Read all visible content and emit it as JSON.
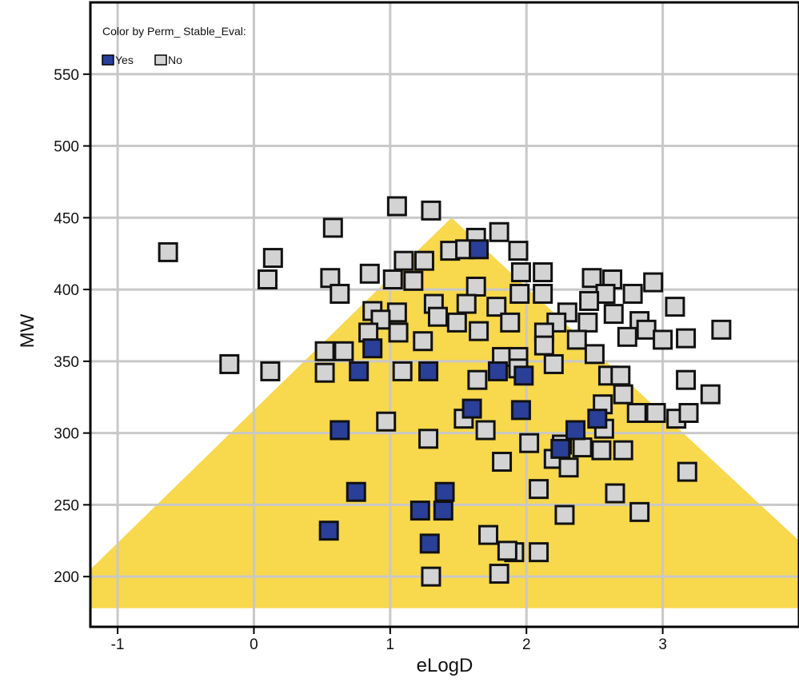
{
  "chart_data": {
    "type": "scatter",
    "xlabel": "eLogD",
    "ylabel": "MW",
    "xlim": [
      -1.2,
      4.0
    ],
    "ylim": [
      165,
      600
    ],
    "x_ticks": [
      -1,
      0,
      1,
      2,
      3
    ],
    "y_ticks": [
      200,
      250,
      300,
      350,
      400,
      450,
      500,
      550
    ],
    "grid": true,
    "legend": {
      "title": "Color by Perm_ Stable_Eval:",
      "position": "top-left",
      "entries": [
        {
          "label": "Yes",
          "color": "#2a3f98"
        },
        {
          "label": "No",
          "color": "#d3d3d3"
        }
      ]
    },
    "region": {
      "color": "#f8d84c",
      "polygon": [
        [
          1.45,
          450
        ],
        [
          -1.2,
          205
        ],
        [
          -1.2,
          178
        ],
        [
          4.0,
          178
        ],
        [
          4.0,
          225
        ]
      ]
    },
    "series": [
      {
        "name": "Yes",
        "color": "#2a3f98",
        "points": [
          [
            1.65,
            428
          ],
          [
            0.87,
            359
          ],
          [
            0.77,
            343
          ],
          [
            1.28,
            343
          ],
          [
            1.79,
            343
          ],
          [
            1.98,
            340
          ],
          [
            1.6,
            317
          ],
          [
            1.96,
            316
          ],
          [
            0.63,
            302
          ],
          [
            2.36,
            302
          ],
          [
            2.52,
            310
          ],
          [
            2.25,
            289
          ],
          [
            0.75,
            259
          ],
          [
            1.4,
            259
          ],
          [
            1.22,
            246
          ],
          [
            1.39,
            246
          ],
          [
            0.55,
            232
          ],
          [
            1.29,
            223
          ]
        ]
      },
      {
        "name": "No",
        "color": "#d3d3d3",
        "points": [
          [
            1.05,
            458
          ],
          [
            1.3,
            455
          ],
          [
            0.58,
            443
          ],
          [
            1.8,
            440
          ],
          [
            1.63,
            436
          ],
          [
            -0.63,
            426
          ],
          [
            1.44,
            427
          ],
          [
            1.55,
            428
          ],
          [
            1.94,
            427
          ],
          [
            0.14,
            422
          ],
          [
            1.1,
            420
          ],
          [
            1.25,
            420
          ],
          [
            1.96,
            412
          ],
          [
            2.12,
            412
          ],
          [
            0.85,
            411
          ],
          [
            1.02,
            407
          ],
          [
            1.17,
            406
          ],
          [
            0.1,
            407
          ],
          [
            0.56,
            408
          ],
          [
            2.48,
            408
          ],
          [
            2.63,
            407
          ],
          [
            2.93,
            405
          ],
          [
            1.63,
            402
          ],
          [
            0.63,
            397
          ],
          [
            1.95,
            397
          ],
          [
            2.12,
            397
          ],
          [
            2.58,
            397
          ],
          [
            2.78,
            397
          ],
          [
            2.46,
            392
          ],
          [
            1.32,
            390
          ],
          [
            1.56,
            390
          ],
          [
            1.78,
            388
          ],
          [
            3.09,
            388
          ],
          [
            0.87,
            385
          ],
          [
            1.05,
            384
          ],
          [
            2.3,
            384
          ],
          [
            2.64,
            383
          ],
          [
            1.35,
            381
          ],
          [
            0.93,
            379
          ],
          [
            2.83,
            378
          ],
          [
            1.88,
            377
          ],
          [
            1.49,
            377
          ],
          [
            2.22,
            377
          ],
          [
            2.45,
            377
          ],
          [
            1.65,
            371
          ],
          [
            2.88,
            372
          ],
          [
            3.43,
            372
          ],
          [
            0.84,
            370
          ],
          [
            1.06,
            370
          ],
          [
            2.13,
            370
          ],
          [
            2.74,
            367
          ],
          [
            2.37,
            365
          ],
          [
            1.24,
            364
          ],
          [
            2.13,
            361
          ],
          [
            3.0,
            365
          ],
          [
            3.17,
            366
          ],
          [
            1.82,
            353
          ],
          [
            1.94,
            353
          ],
          [
            2.2,
            348
          ],
          [
            2.5,
            355
          ],
          [
            0.52,
            357
          ],
          [
            0.66,
            357
          ],
          [
            -0.18,
            348
          ],
          [
            0.12,
            343
          ],
          [
            0.52,
            342
          ],
          [
            1.09,
            343
          ],
          [
            1.94,
            345
          ],
          [
            2.6,
            340
          ],
          [
            2.69,
            340
          ],
          [
            3.17,
            337
          ],
          [
            1.64,
            337
          ],
          [
            2.71,
            327
          ],
          [
            3.35,
            327
          ],
          [
            2.56,
            320
          ],
          [
            1.54,
            310
          ],
          [
            0.97,
            308
          ],
          [
            2.81,
            314
          ],
          [
            2.95,
            314
          ],
          [
            3.1,
            310
          ],
          [
            3.19,
            314
          ],
          [
            1.7,
            302
          ],
          [
            2.57,
            303
          ],
          [
            1.28,
            296
          ],
          [
            2.02,
            293
          ],
          [
            2.26,
            292
          ],
          [
            2.41,
            290
          ],
          [
            2.55,
            288
          ],
          [
            2.71,
            288
          ],
          [
            2.2,
            282
          ],
          [
            1.82,
            280
          ],
          [
            2.31,
            276
          ],
          [
            3.18,
            273
          ],
          [
            2.09,
            261
          ],
          [
            2.65,
            258
          ],
          [
            2.83,
            245
          ],
          [
            2.28,
            243
          ],
          [
            1.72,
            229
          ],
          [
            1.91,
            217
          ],
          [
            2.09,
            217
          ],
          [
            1.86,
            218
          ],
          [
            1.8,
            202
          ],
          [
            1.3,
            200
          ]
        ]
      }
    ]
  }
}
